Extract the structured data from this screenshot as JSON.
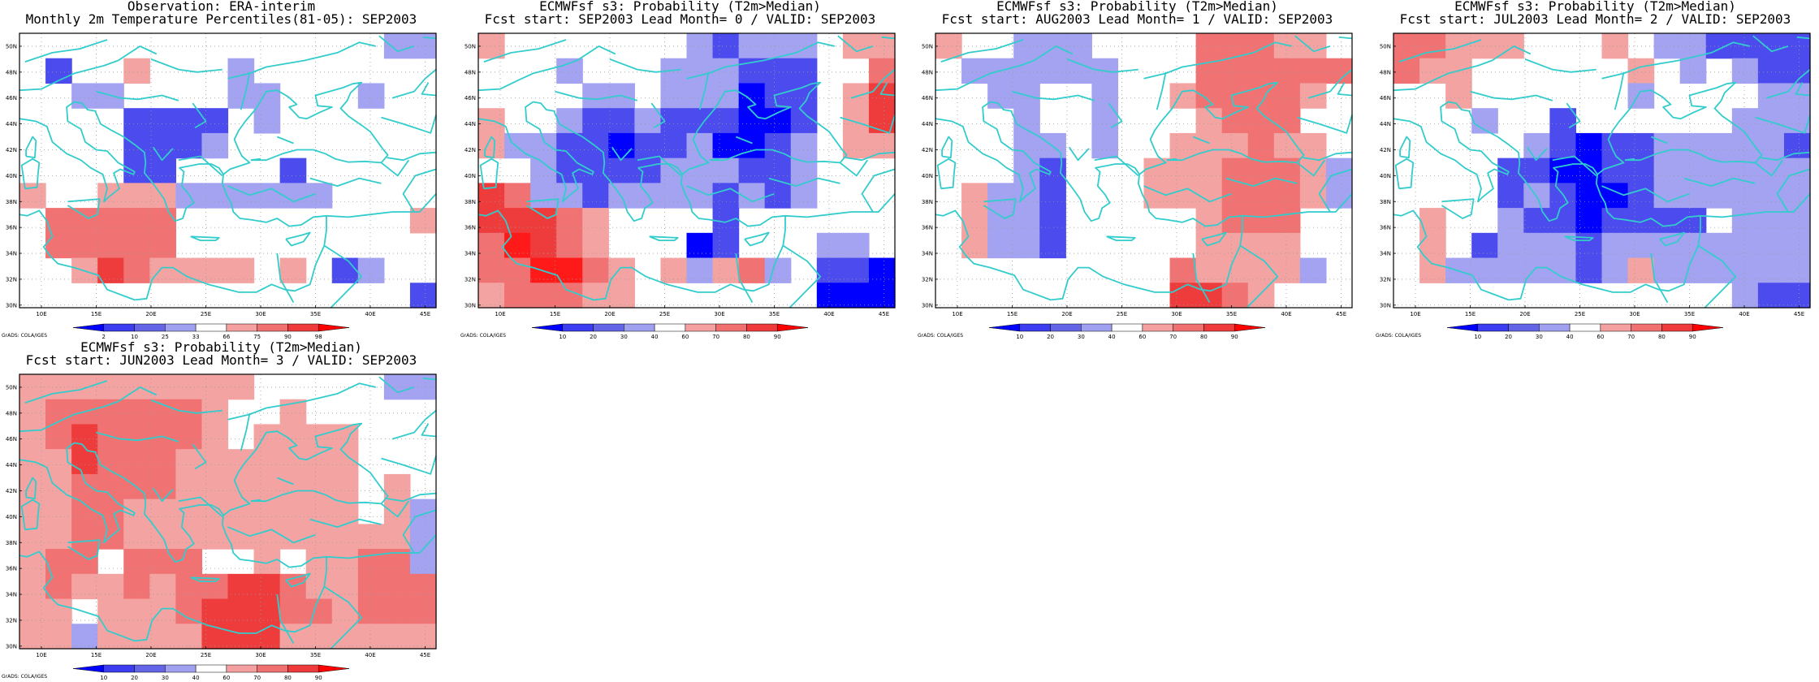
{
  "panels": [
    {
      "title1": "Observation: ERA-interim",
      "title2": "Monthly 2m Temperature Percentiles(81-05): SEP2003",
      "credit": "GrADS: COLA/IGES",
      "colorbar": {
        "labels": [
          "2",
          "10",
          "25",
          "33",
          "66",
          "75",
          "90",
          "98"
        ],
        "colors": [
          "#0000ff",
          "#3c3cf0",
          "#6464e6",
          "#a0a0f0",
          "#ffffff",
          "#f5a0a0",
          "#f07070",
          "#ee3a3a",
          "#ff0000"
        ]
      },
      "grid": [
        [
          "0",
          "0",
          "0",
          "0",
          "0",
          "0",
          "0",
          "0",
          "0",
          "0",
          "0",
          "0",
          "0",
          "0",
          "b1",
          "b1"
        ],
        [
          "0",
          "b2",
          "0",
          "0",
          "r1",
          "0",
          "0",
          "0",
          "b1",
          "0",
          "0",
          "0",
          "0",
          "0",
          "0",
          "0"
        ],
        [
          "0",
          "0",
          "b1",
          "b1",
          "0",
          "0",
          "0",
          "0",
          "b1",
          "b1",
          "0",
          "0",
          "0",
          "b1",
          "0",
          "0"
        ],
        [
          "0",
          "0",
          "0",
          "0",
          "b2",
          "b2",
          "b2",
          "b2",
          "0",
          "b1",
          "0",
          "0",
          "0",
          "0",
          "0",
          "0"
        ],
        [
          "0",
          "0",
          "0",
          "0",
          "b2",
          "b2",
          "b2",
          "b1",
          "0",
          "0",
          "0",
          "0",
          "0",
          "0",
          "0",
          "0"
        ],
        [
          "0",
          "0",
          "0",
          "0",
          "b2",
          "b2",
          "0",
          "0",
          "0",
          "0",
          "b2",
          "0",
          "0",
          "0",
          "0",
          "0"
        ],
        [
          "r1",
          "0",
          "0",
          "r1",
          "r1",
          "r1",
          "b1",
          "b1",
          "b1",
          "b1",
          "b1",
          "b1",
          "0",
          "0",
          "0",
          "0"
        ],
        [
          "0",
          "r2",
          "r2",
          "r2",
          "r2",
          "r2",
          "0",
          "0",
          "0",
          "0",
          "0",
          "0",
          "0",
          "0",
          "0",
          "r1"
        ],
        [
          "0",
          "r2",
          "r2",
          "r2",
          "r2",
          "r2",
          "0",
          "0",
          "0",
          "0",
          "0",
          "0",
          "0",
          "0",
          "0",
          "0"
        ],
        [
          "0",
          "0",
          "r1",
          "r3",
          "r2",
          "r1",
          "r1",
          "r1",
          "r1",
          "0",
          "r1",
          "0",
          "b2",
          "b1",
          "0",
          "0"
        ],
        [
          "0",
          "0",
          "0",
          "0",
          "0",
          "0",
          "0",
          "0",
          "0",
          "0",
          "0",
          "0",
          "0",
          "0",
          "0",
          "b2"
        ]
      ]
    },
    {
      "title1": "ECMWFsf s3: Probability (T2m>Median)",
      "title2": "Fcst start: SEP2003  Lead Month= 0 / VALID: SEP2003",
      "credit": "GrADS: COLA/IGES",
      "colorbar": {
        "labels": [
          "10",
          "20",
          "30",
          "40",
          "60",
          "70",
          "80",
          "90"
        ],
        "colors": [
          "#0000ff",
          "#3c3cf0",
          "#6464e6",
          "#a0a0f0",
          "#ffffff",
          "#f5a0a0",
          "#f07070",
          "#ee3a3a",
          "#ff0000"
        ]
      },
      "grid": [
        [
          "r1",
          "0",
          "0",
          "0",
          "0",
          "0",
          "0",
          "0",
          "b1",
          "b2",
          "b1",
          "b1",
          "b1",
          "0",
          "r1",
          "r1"
        ],
        [
          "0",
          "0",
          "0",
          "b1",
          "0",
          "0",
          "0",
          "b1",
          "b1",
          "b1",
          "b2",
          "b2",
          "b2",
          "0",
          "0",
          "r2"
        ],
        [
          "0",
          "0",
          "0",
          "0",
          "b1",
          "b1",
          "0",
          "b1",
          "b1",
          "b1",
          "b3",
          "b2",
          "b2",
          "0",
          "r1",
          "r3"
        ],
        [
          "r1",
          "0",
          "0",
          "b1",
          "b2",
          "b2",
          "b1",
          "b2",
          "b2",
          "b2",
          "b3",
          "b3",
          "b2",
          "0",
          "r1",
          "r3"
        ],
        [
          "r1",
          "b1",
          "b1",
          "b2",
          "b2",
          "b3",
          "b2",
          "b2",
          "b1",
          "b3",
          "b3",
          "b2",
          "b1",
          "0",
          "r1",
          "r1"
        ],
        [
          "0",
          "0",
          "b1",
          "b2",
          "b2",
          "b2",
          "b2",
          "b1",
          "b1",
          "b1",
          "b2",
          "b2",
          "b1",
          "0",
          "0",
          "0"
        ],
        [
          "r3",
          "r2",
          "b1",
          "b1",
          "b2",
          "b1",
          "b1",
          "b1",
          "b1",
          "b2",
          "b1",
          "b2",
          "b1",
          "0",
          "0",
          "0"
        ],
        [
          "r3",
          "r3",
          "r3",
          "r2",
          "r1",
          "0",
          "0",
          "0",
          "0",
          "b2",
          "0",
          "0",
          "0",
          "0",
          "0",
          "0"
        ],
        [
          "r2",
          "r4",
          "r3",
          "r2",
          "r1",
          "0",
          "0",
          "0",
          "b3",
          "b2",
          "0",
          "0",
          "0",
          "b1",
          "b1",
          "0"
        ],
        [
          "r2",
          "r2",
          "r4",
          "r4",
          "r2",
          "r1",
          "0",
          "r1",
          "b1",
          "r1",
          "r2",
          "b1",
          "0",
          "b2",
          "b2",
          "b3"
        ],
        [
          "r1",
          "r2",
          "r2",
          "r2",
          "r1",
          "r1",
          "0",
          "0",
          "0",
          "0",
          "0",
          "0",
          "0",
          "b3",
          "b3",
          "b3"
        ]
      ]
    },
    {
      "title1": "ECMWFsf s3: Probability (T2m>Median)",
      "title2": "Fcst start: AUG2003  Lead Month= 1 / VALID: SEP2003",
      "credit": "GrADS: COLA/IGES",
      "colorbar": {
        "labels": [
          "10",
          "20",
          "30",
          "40",
          "60",
          "70",
          "80",
          "90"
        ],
        "colors": [
          "#0000ff",
          "#3c3cf0",
          "#6464e6",
          "#a0a0f0",
          "#ffffff",
          "#f5a0a0",
          "#f07070",
          "#ee3a3a",
          "#ff0000"
        ]
      },
      "grid": [
        [
          "r1",
          "0",
          "0",
          "b1",
          "b1",
          "b1",
          "0",
          "0",
          "0",
          "0",
          "r2",
          "r2",
          "r2",
          "r1",
          "r1",
          "0"
        ],
        [
          "0",
          "b1",
          "b1",
          "b1",
          "b1",
          "b1",
          "b1",
          "0",
          "0",
          "0",
          "r2",
          "r2",
          "r2",
          "r2",
          "r2",
          "r2"
        ],
        [
          "0",
          "0",
          "b1",
          "b1",
          "0",
          "0",
          "b1",
          "0",
          "0",
          "r1",
          "r2",
          "r2",
          "r2",
          "r2",
          "r1",
          "0"
        ],
        [
          "0",
          "0",
          "0",
          "b1",
          "0",
          "0",
          "b1",
          "0",
          "0",
          "0",
          "r1",
          "r2",
          "r2",
          "r2",
          "0",
          "0"
        ],
        [
          "0",
          "0",
          "0",
          "b1",
          "b1",
          "0",
          "b1",
          "0",
          "0",
          "r1",
          "r1",
          "r1",
          "r2",
          "r1",
          "r1",
          "0"
        ],
        [
          "0",
          "0",
          "0",
          "b1",
          "b2",
          "0",
          "0",
          "0",
          "r1",
          "r1",
          "r1",
          "r2",
          "r2",
          "r2",
          "r1",
          "b1"
        ],
        [
          "0",
          "r1",
          "b1",
          "b1",
          "b2",
          "0",
          "0",
          "0",
          "r1",
          "r1",
          "r1",
          "r2",
          "r2",
          "r2",
          "r1",
          "b1"
        ],
        [
          "0",
          "r1",
          "b1",
          "b1",
          "b2",
          "0",
          "0",
          "0",
          "0",
          "0",
          "r1",
          "r2",
          "r2",
          "r2",
          "0",
          "0"
        ],
        [
          "0",
          "r1",
          "b1",
          "b1",
          "b2",
          "0",
          "0",
          "0",
          "0",
          "0",
          "r1",
          "r1",
          "r1",
          "r1",
          "0",
          "0"
        ],
        [
          "0",
          "0",
          "0",
          "0",
          "0",
          "0",
          "0",
          "0",
          "0",
          "r2",
          "r1",
          "r1",
          "r1",
          "r1",
          "b1",
          "0"
        ],
        [
          "0",
          "0",
          "0",
          "0",
          "0",
          "0",
          "0",
          "0",
          "0",
          "r3",
          "r3",
          "r2",
          "r1",
          "0",
          "0",
          "0"
        ]
      ]
    },
    {
      "title1": "ECMWFsf s3: Probability (T2m>Median)",
      "title2": "Fcst start: JUL2003  Lead Month= 2 / VALID: SEP2003",
      "credit": "GrADS: COLA/IGES",
      "colorbar": {
        "labels": [
          "10",
          "20",
          "30",
          "40",
          "60",
          "70",
          "80",
          "90"
        ],
        "colors": [
          "#0000ff",
          "#3c3cf0",
          "#6464e6",
          "#a0a0f0",
          "#ffffff",
          "#f5a0a0",
          "#f07070",
          "#ee3a3a",
          "#ff0000"
        ]
      },
      "grid": [
        [
          "r2",
          "r2",
          "r1",
          "r1",
          "r1",
          "0",
          "0",
          "0",
          "r1",
          "0",
          "b1",
          "b1",
          "b2",
          "b2",
          "b2",
          "b2"
        ],
        [
          "r2",
          "r1",
          "r1",
          "0",
          "0",
          "0",
          "0",
          "0",
          "0",
          "r1",
          "0",
          "b1",
          "0",
          "b1",
          "b2",
          "b2"
        ],
        [
          "0",
          "0",
          "r1",
          "0",
          "0",
          "0",
          "0",
          "0",
          "0",
          "b1",
          "0",
          "0",
          "0",
          "0",
          "b1",
          "b1"
        ],
        [
          "0",
          "0",
          "0",
          "b1",
          "0",
          "0",
          "b2",
          "0",
          "0",
          "0",
          "0",
          "0",
          "0",
          "b1",
          "b1",
          "b1"
        ],
        [
          "0",
          "0",
          "0",
          "0",
          "0",
          "b1",
          "b2",
          "b3",
          "b2",
          "b2",
          "b1",
          "b1",
          "b1",
          "b1",
          "b1",
          "b2"
        ],
        [
          "0",
          "0",
          "0",
          "0",
          "b2",
          "b2",
          "b3",
          "b3",
          "b2",
          "b2",
          "b1",
          "b1",
          "b1",
          "b1",
          "b1",
          "b1"
        ],
        [
          "0",
          "0",
          "0",
          "0",
          "b2",
          "b1",
          "b2",
          "b3",
          "b3",
          "b2",
          "b1",
          "b1",
          "b1",
          "b1",
          "b1",
          "b1"
        ],
        [
          "0",
          "r1",
          "0",
          "0",
          "b1",
          "b2",
          "b2",
          "b3",
          "b2",
          "b2",
          "b2",
          "b2",
          "0",
          "b1",
          "b1",
          "b1"
        ],
        [
          "0",
          "r1",
          "0",
          "b2",
          "b1",
          "b1",
          "b1",
          "b2",
          "b1",
          "b1",
          "b1",
          "b1",
          "b1",
          "b1",
          "b1",
          "b1"
        ],
        [
          "0",
          "r1",
          "b1",
          "b1",
          "b1",
          "b1",
          "b1",
          "b2",
          "b1",
          "r1",
          "b1",
          "b1",
          "b1",
          "b1",
          "b1",
          "b1"
        ],
        [
          "0",
          "0",
          "0",
          "0",
          "0",
          "0",
          "0",
          "0",
          "0",
          "0",
          "0",
          "0",
          "0",
          "b1",
          "b2",
          "b2"
        ]
      ]
    },
    {
      "title1": "ECMWFsf s3: Probability (T2m>Median)",
      "title2": "Fcst start: JUN2003  Lead Month= 3 / VALID: SEP2003",
      "credit": "GrADS: COLA/IGES",
      "colorbar": {
        "labels": [
          "10",
          "20",
          "30",
          "40",
          "60",
          "70",
          "80",
          "90"
        ],
        "colors": [
          "#0000ff",
          "#3c3cf0",
          "#6464e6",
          "#a0a0f0",
          "#ffffff",
          "#f5a0a0",
          "#f07070",
          "#ee3a3a",
          "#ff0000"
        ]
      },
      "grid": [
        [
          "r1",
          "r1",
          "r1",
          "r1",
          "r1",
          "r1",
          "r1",
          "r1",
          "r1",
          "0",
          "0",
          "0",
          "0",
          "0",
          "b1",
          "b1"
        ],
        [
          "r1",
          "r2",
          "r2",
          "r2",
          "r2",
          "r2",
          "r2",
          "r1",
          "0",
          "0",
          "r1",
          "0",
          "0",
          "0",
          "0",
          "0"
        ],
        [
          "r1",
          "r2",
          "r3",
          "r2",
          "r2",
          "r2",
          "r2",
          "r1",
          "0",
          "r1",
          "r1",
          "r1",
          "r1",
          "0",
          "0",
          "0"
        ],
        [
          "r1",
          "r1",
          "r3",
          "r2",
          "r2",
          "r2",
          "r1",
          "r1",
          "r1",
          "r1",
          "r1",
          "r1",
          "r1",
          "0",
          "0",
          "0"
        ],
        [
          "r1",
          "r1",
          "r2",
          "r2",
          "r2",
          "r2",
          "r1",
          "r1",
          "r1",
          "r1",
          "r1",
          "r1",
          "r1",
          "0",
          "r1",
          "0"
        ],
        [
          "r1",
          "r1",
          "r2",
          "r2",
          "r1",
          "r1",
          "r1",
          "r1",
          "r1",
          "r1",
          "r1",
          "r1",
          "r1",
          "0",
          "r1",
          "b1"
        ],
        [
          "r1",
          "r1",
          "r2",
          "r2",
          "r1",
          "r1",
          "r1",
          "r1",
          "r1",
          "r1",
          "r1",
          "r1",
          "r1",
          "r1",
          "r1",
          "b1"
        ],
        [
          "r1",
          "r2",
          "r2",
          "0",
          "r2",
          "r2",
          "r2",
          "0",
          "0",
          "r1",
          "0",
          "r1",
          "r1",
          "r2",
          "r2",
          "b1"
        ],
        [
          "r1",
          "r2",
          "r1",
          "r1",
          "r2",
          "r1",
          "r2",
          "r2",
          "r3",
          "r3",
          "r2",
          "r1",
          "r1",
          "r2",
          "r2",
          "r2"
        ],
        [
          "r1",
          "r1",
          "0",
          "r1",
          "r1",
          "r1",
          "r2",
          "r3",
          "r3",
          "r3",
          "r2",
          "r2",
          "r1",
          "r2",
          "r2",
          "r2"
        ],
        [
          "r1",
          "r1",
          "b1",
          "r1",
          "r1",
          "r1",
          "r1",
          "r3",
          "r3",
          "r3",
          "r1",
          "r1",
          "r1",
          "r1",
          "r1",
          "r1"
        ]
      ]
    }
  ],
  "axes": {
    "lat_labels": [
      "50N",
      "48N",
      "46N",
      "44N",
      "42N",
      "40N",
      "38N",
      "36N",
      "34N",
      "32N",
      "30N"
    ],
    "lon_labels": [
      "10E",
      "15E",
      "20E",
      "25E",
      "30E",
      "35E",
      "40E",
      "45E"
    ]
  },
  "palette": {
    "b3": "#0000ff",
    "b2": "#4b4bee",
    "b1": "#a3a3f2",
    "0": "#ffffff",
    "r1": "#f4a3a3",
    "r2": "#f07272",
    "r3": "#ee3c3c",
    "r4": "#ff1a1a",
    "coast": "#33cccc",
    "grid_dots": "#9a9a9a"
  }
}
